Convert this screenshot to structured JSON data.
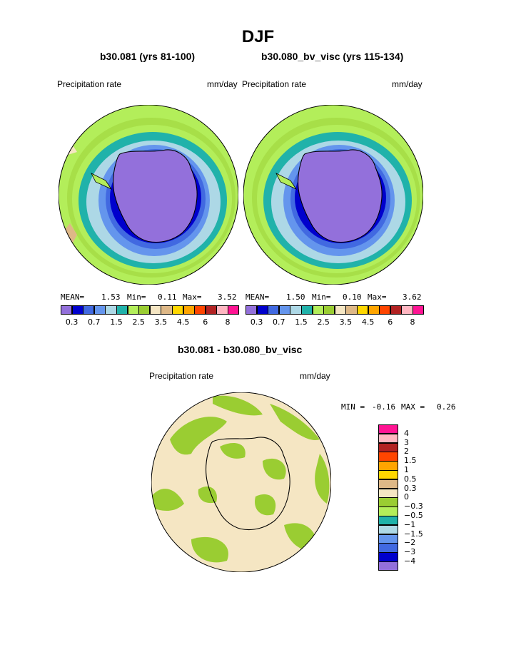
{
  "page": {
    "title": "DJF"
  },
  "panels": [
    {
      "title": "b30.081 (yrs 81-100)",
      "left_label": "Precipitation rate",
      "right_label": "mm/day",
      "stats": {
        "mean_label": "MEAN=",
        "mean": "1.53",
        "min_label": "Min=",
        "min": "0.11",
        "max_label": "Max=",
        "max": "3.52"
      }
    },
    {
      "title": "b30.080_bv_visc (yrs 115-134)",
      "left_label": "Precipitation rate",
      "right_label": "mm/day",
      "stats": {
        "mean_label": "MEAN=",
        "mean": "1.50",
        "min_label": "Min=",
        "min": "0.10",
        "max_label": "Max=",
        "max": "3.62"
      }
    },
    {
      "title": "b30.081 - b30.080_bv_visc",
      "left_label": "Precipitation rate",
      "right_label": "mm/day",
      "stats": {
        "min_label": "MIN =",
        "min": "-0.16",
        "max_label": "MAX =",
        "max": "0.26"
      }
    }
  ],
  "colorbar_h": {
    "colors": [
      "#9370db",
      "#0000cd",
      "#4169e1",
      "#6495ed",
      "#add8e6",
      "#20b2aa",
      "#b3ee5a",
      "#9acd32",
      "#f5e6c3",
      "#deb887",
      "#ffd700",
      "#ffa500",
      "#ff4500",
      "#b22222",
      "#ffb6c1",
      "#ff1493"
    ],
    "tick_labels": [
      "0.3",
      "0.7",
      "1.5",
      "2.5",
      "3.5",
      "4.5",
      "6",
      "8"
    ]
  },
  "colorbar_v": {
    "colors_top_to_bottom": [
      "#ff1493",
      "#ffb6c1",
      "#b22222",
      "#ff4500",
      "#ffa500",
      "#ffd700",
      "#deb887",
      "#f5e6c3",
      "#9acd32",
      "#b3ee5a",
      "#20b2aa",
      "#add8e6",
      "#6495ed",
      "#4169e1",
      "#0000cd",
      "#9370db"
    ],
    "tick_labels": [
      "4",
      "3",
      "2",
      "1.5",
      "1",
      "0.5",
      "0.3",
      "0",
      "−0.3",
      "−0.5",
      "−1",
      "−1.5",
      "−2",
      "−3",
      "−4"
    ]
  },
  "chart_data": [
    {
      "type": "heatmap",
      "title": "b30.081 (yrs 81-100)",
      "variable": "Precipitation rate",
      "units": "mm/day",
      "projection": "polar stereographic (south)",
      "mean": 1.53,
      "min": 0.11,
      "max": 3.52,
      "levels": [
        0.3,
        0.7,
        1.5,
        2.5,
        3.5,
        4.5,
        6,
        8
      ]
    },
    {
      "type": "heatmap",
      "title": "b30.080_bv_visc (yrs 115-134)",
      "variable": "Precipitation rate",
      "units": "mm/day",
      "projection": "polar stereographic (south)",
      "mean": 1.5,
      "min": 0.1,
      "max": 3.62,
      "levels": [
        0.3,
        0.7,
        1.5,
        2.5,
        3.5,
        4.5,
        6,
        8
      ]
    },
    {
      "type": "heatmap",
      "title": "b30.081 - b30.080_bv_visc",
      "variable": "Precipitation rate",
      "units": "mm/day",
      "projection": "polar stereographic (south)",
      "min": -0.16,
      "max": 0.26,
      "levels": [
        -4,
        -3,
        -2,
        -1.5,
        -1,
        -0.5,
        -0.3,
        0,
        0.3,
        0.5,
        1,
        1.5,
        2,
        3,
        4
      ]
    }
  ]
}
